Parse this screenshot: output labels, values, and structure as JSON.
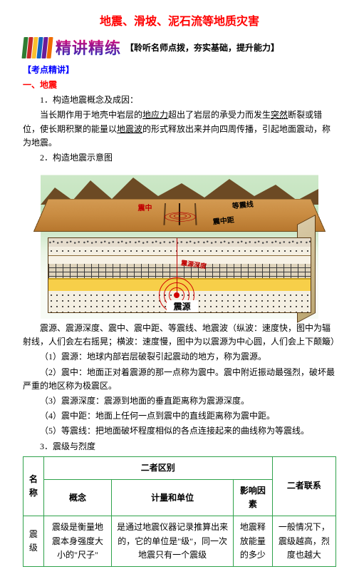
{
  "title": "地震、滑坡、泥石流等地质灾害",
  "banner": {
    "main": "精讲精练",
    "sub": "【聆听名师点拨，夯实基础，提升能力】",
    "book_colors": [
      "#2e7d32",
      "#c62828",
      "#fbc02d",
      "#1565c0",
      "#6a1b9a",
      "#ef6c00"
    ]
  },
  "kaodian": "【考点精讲】",
  "sec1": "一、地震",
  "p1_label": "1．构造地震概念及成因：",
  "p1_body_a": "当长期作用于地壳中岩层的",
  "p1_u1": "地应力",
  "p1_body_b": "超出了岩层的承受力而发生",
  "p1_u2": "突然",
  "p1_body_c": "断裂或错位，使长期积聚的能量以",
  "p1_u3": "地震波",
  "p1_body_d": "的形式释放出来并向四周传播，引起地面震动，称为地震。",
  "p2": "2．构造地震示意图",
  "diagram": {
    "labels": {
      "zhenzhong": "震中",
      "dengzhenxian": "等震线",
      "zhenzhongju": "震中距",
      "zhenyuanshendu": "震源深度",
      "zhenyuan": "震源"
    },
    "colors": {
      "sky_top": "#cfe9c9",
      "ground": "#c98c42",
      "band": "#f7cf49",
      "focus": "#d10000",
      "ring": "#d10000",
      "mountain": "#6c4a24"
    }
  },
  "p3": "震源、震源深度、震中、震中距、等震线、地震波（纵波：速度快，图中为辐射线，人们会左右摇晃；横波：速度慢，图中为以震源为中心圆，人们会上下颠簸）",
  "li1": "（1）震源：地球内部岩层破裂引起震动的地方，称为震源。",
  "li2": "（2）震中：地面正对着震源的那一点称为震中。震中附近振动最强烈，破坏最严重的地区称为极震区。",
  "li3": "（3）震源深度：震源到地面的垂直距离称为震源深度。",
  "li4": "（4）震中距：地面上任何一点到震中的直线距离称为震中距。",
  "li5": "（5）等震线：把地面破坏程度相似的各点连接起来的曲线称为等震线。",
  "p4": "3．震级与烈度",
  "table": {
    "h_name": "名称",
    "h_diff": "二者区别",
    "h_link": "二者联系",
    "h_concept": "概念",
    "h_unit": "计量和单位",
    "h_factor": "影响因素",
    "row": {
      "name": "震级",
      "concept": "震级是衡量地震本身强度大小的\"尺子\"",
      "unit": "是通过地震仪器记录推算出来的，它的单位是\"级\"，同一次地震只有一个震级",
      "factor": "地震释放能量的多少",
      "link": "一般情况下，震级越高，烈度也越大"
    }
  }
}
